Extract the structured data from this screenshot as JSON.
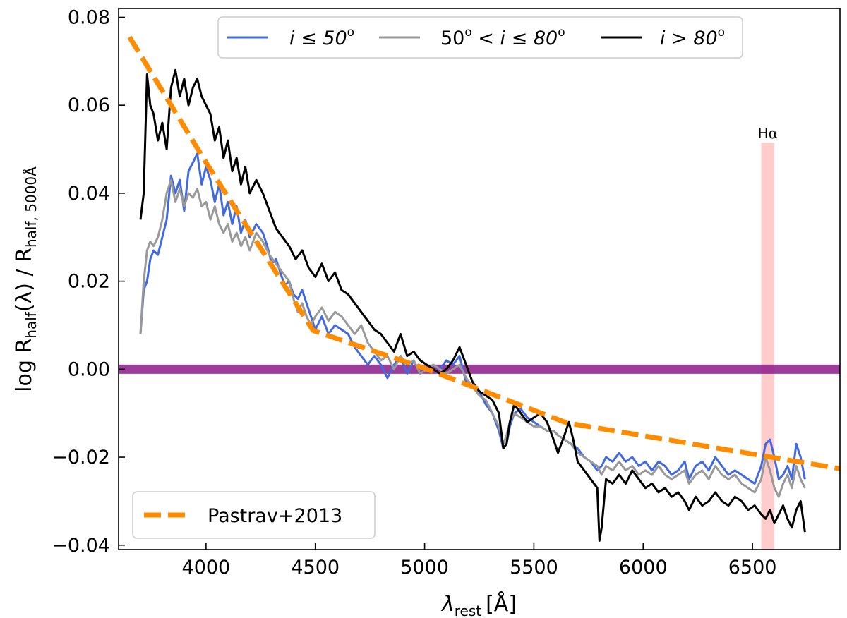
{
  "chart_data": {
    "type": "line",
    "xlabel": "λ",
    "xlabel_sub": "rest",
    "xlabel_unit": "[Å]",
    "ylabel_prefix": "log R",
    "ylabel_sub1": "half",
    "ylabel_mid": "(λ) / R",
    "ylabel_sub2": "half, 5000Å",
    "xlim": [
      3600,
      6900
    ],
    "ylim": [
      -0.041,
      0.082
    ],
    "xticks": [
      4000,
      4500,
      5000,
      5500,
      6000,
      6500
    ],
    "xtick_labels": [
      "4000",
      "4500",
      "5000",
      "5500",
      "6000",
      "6500"
    ],
    "yticks": [
      -0.04,
      -0.02,
      0.0,
      0.02,
      0.04,
      0.06,
      0.08
    ],
    "ytick_labels": [
      "−0.04",
      "−0.02",
      "0.00",
      "0.02",
      "0.04",
      "0.06",
      "0.08"
    ],
    "reference_line": {
      "y": 0.0,
      "color": "#8b1a89"
    },
    "halpha_band": {
      "x_from": 6540,
      "x_to": 6600,
      "label": "Hα",
      "color": "#ff9999"
    },
    "series": [
      {
        "name": "i ≤ 50°",
        "label_text": "i ≤ 50",
        "color": "#4169e1",
        "x": [
          3700,
          3715,
          3730,
          3745,
          3760,
          3780,
          3800,
          3820,
          3840,
          3860,
          3880,
          3900,
          3920,
          3940,
          3960,
          3980,
          4000,
          4020,
          4040,
          4060,
          4080,
          4100,
          4120,
          4140,
          4160,
          4180,
          4200,
          4230,
          4260,
          4280,
          4300,
          4320,
          4340,
          4360,
          4380,
          4400,
          4420,
          4440,
          4460,
          4480,
          4500,
          4530,
          4560,
          4590,
          4620,
          4650,
          4680,
          4710,
          4740,
          4770,
          4800,
          4830,
          4860,
          4890,
          4920,
          4950,
          4980,
          5010,
          5040,
          5070,
          5100,
          5130,
          5160,
          5190,
          5220,
          5250,
          5280,
          5310,
          5340,
          5360,
          5375,
          5390,
          5410,
          5440,
          5470,
          5500,
          5530,
          5560,
          5590,
          5610,
          5640,
          5670,
          5700,
          5730,
          5760,
          5790,
          5810,
          5830,
          5860,
          5890,
          5920,
          5950,
          5980,
          6010,
          6040,
          6070,
          6100,
          6130,
          6160,
          6190,
          6210,
          6240,
          6270,
          6300,
          6330,
          6360,
          6390,
          6420,
          6450,
          6480,
          6510,
          6540,
          6560,
          6580,
          6600,
          6620,
          6640,
          6660,
          6680,
          6700,
          6720,
          6740
        ],
        "y": [
          0.008,
          0.018,
          0.02,
          0.025,
          0.027,
          0.026,
          0.03,
          0.034,
          0.044,
          0.04,
          0.043,
          0.036,
          0.045,
          0.047,
          0.049,
          0.042,
          0.046,
          0.043,
          0.038,
          0.042,
          0.035,
          0.038,
          0.033,
          0.037,
          0.031,
          0.034,
          0.03,
          0.033,
          0.031,
          0.028,
          0.024,
          0.025,
          0.022,
          0.019,
          0.02,
          0.017,
          0.016,
          0.018,
          0.015,
          0.012,
          0.009,
          0.012,
          0.008,
          0.01,
          0.009,
          0.008,
          0.005,
          0.003,
          0.001,
          0.003,
          0.001,
          -0.002,
          0.001,
          0.003,
          -0.001,
          0.002,
          -0.001,
          0.0,
          0.001,
          0.0,
          0.002,
          0.001,
          0.003,
          -0.003,
          -0.004,
          -0.005,
          -0.008,
          -0.01,
          -0.014,
          -0.018,
          -0.017,
          -0.013,
          -0.01,
          -0.009,
          -0.011,
          -0.012,
          -0.013,
          -0.014,
          -0.014,
          -0.015,
          -0.016,
          -0.017,
          -0.018,
          -0.02,
          -0.021,
          -0.023,
          -0.022,
          -0.02,
          -0.021,
          -0.019,
          -0.021,
          -0.02,
          -0.022,
          -0.021,
          -0.023,
          -0.021,
          -0.022,
          -0.024,
          -0.023,
          -0.021,
          -0.025,
          -0.022,
          -0.021,
          -0.023,
          -0.02,
          -0.022,
          -0.024,
          -0.023,
          -0.024,
          -0.025,
          -0.026,
          -0.022,
          -0.017,
          -0.016,
          -0.02,
          -0.025,
          -0.024,
          -0.022,
          -0.025,
          -0.017,
          -0.02,
          -0.025
        ]
      },
      {
        "name": "50° < i ≤ 80°",
        "label_text": "50",
        "label_text2": " < i ≤ 80",
        "color": "#999999",
        "x": [
          3700,
          3715,
          3730,
          3745,
          3760,
          3780,
          3800,
          3820,
          3840,
          3860,
          3880,
          3900,
          3920,
          3940,
          3960,
          3980,
          4000,
          4020,
          4040,
          4060,
          4080,
          4100,
          4120,
          4140,
          4160,
          4180,
          4200,
          4230,
          4260,
          4290,
          4320,
          4350,
          4380,
          4400,
          4420,
          4440,
          4460,
          4480,
          4500,
          4530,
          4560,
          4590,
          4620,
          4650,
          4680,
          4710,
          4740,
          4770,
          4800,
          4830,
          4860,
          4890,
          4920,
          4950,
          4980,
          5010,
          5040,
          5070,
          5100,
          5130,
          5160,
          5190,
          5220,
          5250,
          5280,
          5310,
          5340,
          5360,
          5375,
          5390,
          5410,
          5440,
          5470,
          5500,
          5530,
          5560,
          5590,
          5610,
          5640,
          5670,
          5700,
          5730,
          5760,
          5790,
          5810,
          5830,
          5860,
          5890,
          5920,
          5950,
          5980,
          6010,
          6040,
          6070,
          6100,
          6130,
          6160,
          6190,
          6210,
          6240,
          6270,
          6300,
          6330,
          6360,
          6390,
          6420,
          6450,
          6480,
          6510,
          6540,
          6560,
          6580,
          6600,
          6620,
          6640,
          6660,
          6680,
          6700,
          6720,
          6740
        ],
        "y": [
          0.008,
          0.02,
          0.027,
          0.029,
          0.028,
          0.03,
          0.034,
          0.04,
          0.043,
          0.038,
          0.041,
          0.037,
          0.04,
          0.039,
          0.041,
          0.037,
          0.038,
          0.034,
          0.037,
          0.033,
          0.031,
          0.033,
          0.029,
          0.031,
          0.028,
          0.03,
          0.027,
          0.031,
          0.029,
          0.026,
          0.024,
          0.022,
          0.02,
          0.016,
          0.013,
          0.015,
          0.012,
          0.01,
          0.012,
          0.014,
          0.011,
          0.013,
          0.012,
          0.01,
          0.008,
          0.01,
          0.006,
          0.004,
          0.002,
          0.003,
          0.0,
          0.003,
          0.001,
          0.002,
          -0.001,
          0.0,
          0.001,
          0.0,
          -0.001,
          0.0,
          0.001,
          -0.002,
          -0.004,
          -0.006,
          -0.007,
          -0.01,
          -0.013,
          -0.017,
          -0.015,
          -0.012,
          -0.01,
          -0.011,
          -0.012,
          -0.013,
          -0.013,
          -0.014,
          -0.014,
          -0.015,
          -0.016,
          -0.017,
          -0.019,
          -0.02,
          -0.021,
          -0.022,
          -0.024,
          -0.022,
          -0.023,
          -0.021,
          -0.023,
          -0.022,
          -0.024,
          -0.023,
          -0.024,
          -0.022,
          -0.024,
          -0.025,
          -0.024,
          -0.023,
          -0.026,
          -0.024,
          -0.023,
          -0.025,
          -0.022,
          -0.024,
          -0.025,
          -0.024,
          -0.026,
          -0.027,
          -0.028,
          -0.025,
          -0.02,
          -0.023,
          -0.027,
          -0.029,
          -0.026,
          -0.024,
          -0.027,
          -0.022,
          -0.025,
          -0.027
        ]
      },
      {
        "name": "i > 80°",
        "label_text": "i > 80",
        "color": "#000000",
        "x": [
          3700,
          3715,
          3730,
          3745,
          3760,
          3780,
          3800,
          3820,
          3840,
          3860,
          3880,
          3900,
          3920,
          3940,
          3960,
          3980,
          4000,
          4020,
          4040,
          4060,
          4080,
          4100,
          4120,
          4140,
          4160,
          4180,
          4200,
          4230,
          4260,
          4290,
          4320,
          4350,
          4380,
          4410,
          4440,
          4470,
          4500,
          4530,
          4560,
          4590,
          4620,
          4650,
          4680,
          4710,
          4740,
          4770,
          4800,
          4830,
          4860,
          4890,
          4920,
          4950,
          4980,
          5010,
          5040,
          5070,
          5100,
          5130,
          5160,
          5190,
          5220,
          5250,
          5280,
          5310,
          5340,
          5360,
          5375,
          5390,
          5410,
          5440,
          5470,
          5500,
          5530,
          5560,
          5590,
          5610,
          5640,
          5660,
          5680,
          5700,
          5730,
          5760,
          5790,
          5800,
          5810,
          5830,
          5860,
          5890,
          5920,
          5950,
          5980,
          6010,
          6040,
          6070,
          6100,
          6130,
          6160,
          6190,
          6210,
          6240,
          6270,
          6300,
          6330,
          6360,
          6390,
          6420,
          6450,
          6480,
          6510,
          6540,
          6560,
          6580,
          6600,
          6620,
          6640,
          6660,
          6680,
          6700,
          6720,
          6740
        ],
        "y": [
          0.034,
          0.04,
          0.067,
          0.06,
          0.058,
          0.052,
          0.056,
          0.05,
          0.064,
          0.068,
          0.062,
          0.066,
          0.06,
          0.064,
          0.066,
          0.062,
          0.06,
          0.058,
          0.052,
          0.055,
          0.048,
          0.052,
          0.045,
          0.048,
          0.042,
          0.046,
          0.04,
          0.043,
          0.04,
          0.036,
          0.032,
          0.03,
          0.028,
          0.025,
          0.027,
          0.023,
          0.021,
          0.024,
          0.02,
          0.022,
          0.018,
          0.017,
          0.015,
          0.013,
          0.011,
          0.009,
          0.008,
          0.006,
          0.004,
          0.008,
          0.003,
          0.004,
          0.002,
          0.001,
          0.0,
          -0.001,
          0.0,
          0.002,
          0.005,
          0.001,
          -0.003,
          -0.005,
          -0.006,
          -0.007,
          -0.01,
          -0.018,
          -0.017,
          -0.012,
          -0.008,
          -0.01,
          -0.012,
          -0.011,
          -0.01,
          -0.012,
          -0.016,
          -0.019,
          -0.015,
          -0.012,
          -0.016,
          -0.021,
          -0.023,
          -0.025,
          -0.027,
          -0.039,
          -0.036,
          -0.025,
          -0.026,
          -0.024,
          -0.026,
          -0.023,
          -0.025,
          -0.027,
          -0.026,
          -0.028,
          -0.027,
          -0.029,
          -0.028,
          -0.03,
          -0.032,
          -0.029,
          -0.031,
          -0.03,
          -0.028,
          -0.03,
          -0.031,
          -0.029,
          -0.03,
          -0.032,
          -0.031,
          -0.033,
          -0.034,
          -0.032,
          -0.035,
          -0.033,
          -0.031,
          -0.034,
          -0.036,
          -0.032,
          -0.03,
          -0.037
        ]
      },
      {
        "name": "Pastrav+2013",
        "label_text": "Pastrav+2013",
        "color": "#ff8c00",
        "dashed": true,
        "x": [
          3650,
          4000,
          4490,
          5000,
          5650,
          6900
        ],
        "y": [
          0.0755,
          0.047,
          0.0088,
          0.0002,
          -0.0122,
          -0.0226
        ]
      }
    ]
  }
}
